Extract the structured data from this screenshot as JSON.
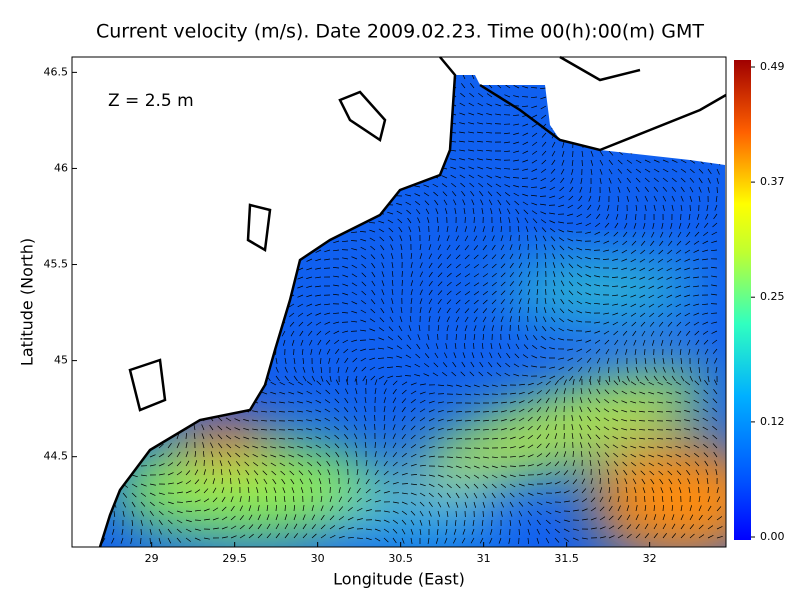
{
  "chart_data": {
    "type": "vector-field-map",
    "title": "Current velocity (m/s). Date 2009.02.23. Time 00(h):00(m) GMT",
    "annotation": "Z = 2.5 m",
    "x_label": "Longitude (East)",
    "y_label": "Latitude (North)",
    "xlim": [
      28.52,
      32.46
    ],
    "xticks": [
      29,
      29.5,
      30,
      30.5,
      31,
      31.5,
      32
    ],
    "ylim": [
      44.03,
      46.58
    ],
    "yticks": [
      44.5,
      45,
      45.5,
      46,
      46.5
    ],
    "colorbar": {
      "lim": [
        0,
        0.49
      ],
      "ticks": [
        {
          "value": 0,
          "label": "0.00"
        },
        0.12,
        0.25,
        0.37,
        0.49
      ]
    }
  }
}
